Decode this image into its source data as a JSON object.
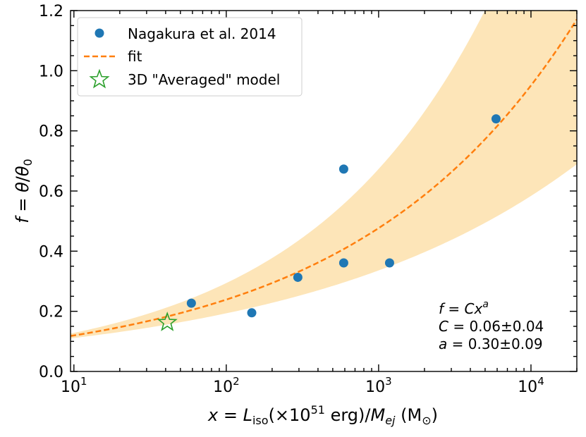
{
  "chart_data": {
    "type": "scatter",
    "xscale": "log",
    "xlim": [
      9.5,
      20000
    ],
    "ylim": [
      0.0,
      1.2
    ],
    "xticks": [
      10,
      100,
      1000,
      10000
    ],
    "xtick_labels": [
      {
        "base": "10",
        "exp": "1"
      },
      {
        "base": "10",
        "exp": "2"
      },
      {
        "base": "10",
        "exp": "3"
      },
      {
        "base": "10",
        "exp": "4"
      }
    ],
    "yticks": [
      0.0,
      0.2,
      0.4,
      0.6,
      0.8,
      1.0,
      1.2
    ],
    "ytick_labels": [
      "0.0",
      "0.2",
      "0.4",
      "0.6",
      "0.8",
      "1.0",
      "1.2"
    ],
    "xlabel": "x = L_iso(×10^51 erg)/M_ej (M_⊙)",
    "ylabel": "f = θ/θ_0",
    "grid": false,
    "legend_position": "top-left",
    "series": [
      {
        "name": "Nagakura et al. 2014",
        "kind": "points",
        "color": "#1f77b4",
        "x": [
          59,
          147,
          295,
          590,
          590,
          1180,
          5900
        ],
        "y": [
          0.227,
          0.195,
          0.313,
          0.673,
          0.361,
          0.361,
          0.84
        ]
      },
      {
        "name": "fit",
        "kind": "dashed-line",
        "color": "#ff7f0e",
        "C": 0.06,
        "a": 0.3
      },
      {
        "name": "3D \"Averaged\" model",
        "kind": "star",
        "color": "#2ca02c",
        "x": [
          41
        ],
        "y": [
          0.163
        ]
      }
    ],
    "band": {
      "color": "#fde5b8",
      "upper": {
        "C": 0.056,
        "a": 0.36
      },
      "lower": {
        "C": 0.064,
        "a": 0.24
      }
    },
    "annotation": {
      "line1": "f = Cx^a",
      "line2": "C = 0.06±0.04",
      "line3": "a = 0.30±0.09"
    }
  }
}
